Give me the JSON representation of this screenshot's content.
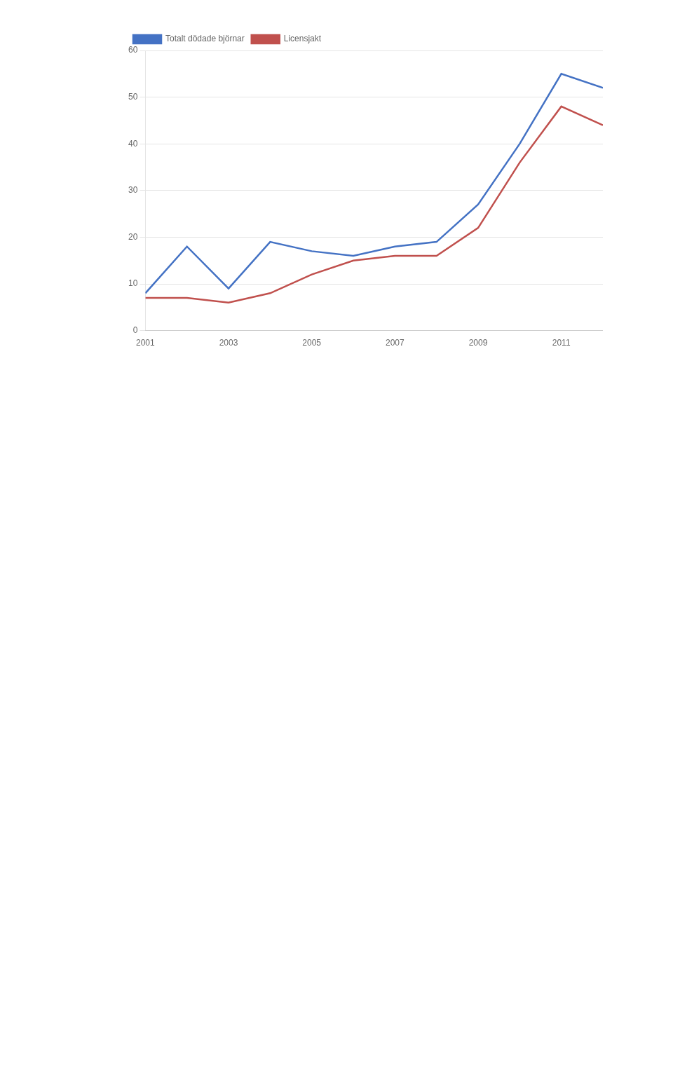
{
  "chart_data": {
    "type": "line",
    "x": [
      2001,
      2002,
      2003,
      2004,
      2005,
      2006,
      2007,
      2008,
      2009,
      2010,
      2011,
      2012
    ],
    "series": [
      {
        "name": "Totalt dödade björnar",
        "color": "#4472C4",
        "values": [
          8,
          18,
          9,
          19,
          17,
          16,
          18,
          19,
          27,
          40,
          55,
          52
        ]
      },
      {
        "name": "Licensjakt",
        "color": "#C0504D",
        "values": [
          7,
          7,
          6,
          8,
          12,
          15,
          16,
          16,
          22,
          36,
          48,
          44
        ]
      }
    ],
    "xlim": [
      2001,
      2012
    ],
    "xticks": [
      2001,
      2003,
      2005,
      2007,
      2009,
      2011
    ],
    "ylim": [
      0,
      60
    ],
    "yticks": [
      0,
      10,
      20,
      30,
      40,
      50,
      60
    ],
    "grid": "y",
    "legend": "upper left"
  }
}
